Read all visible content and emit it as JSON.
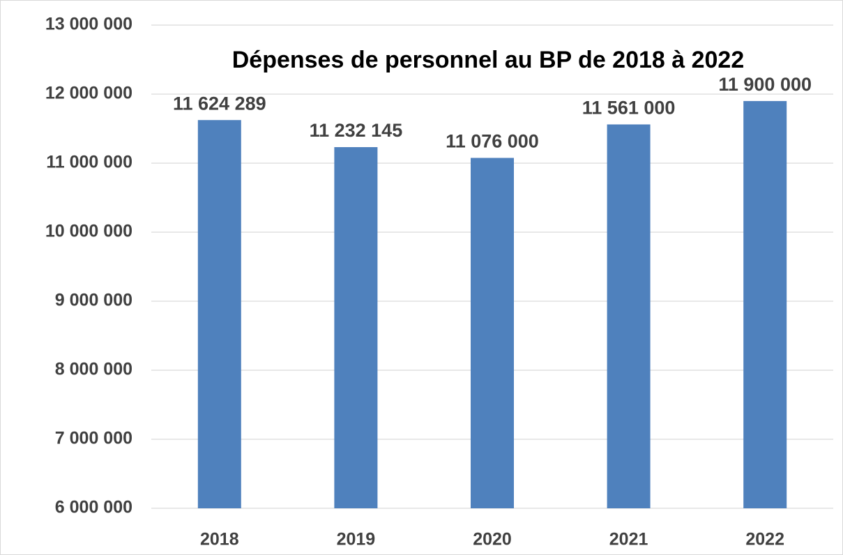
{
  "chart_data": {
    "type": "bar",
    "title": "Dépenses de personnel au BP de 2018 à 2022",
    "categories": [
      "2018",
      "2019",
      "2020",
      "2021",
      "2022"
    ],
    "values": [
      11624289,
      11232145,
      11076000,
      11561000,
      11900000
    ],
    "value_labels": [
      "11 624 289",
      "11 232 145",
      "11 076 000",
      "11 561 000",
      "11 900 000"
    ],
    "color": "#4f81bd",
    "ylim": [
      6000000,
      13000000
    ],
    "yticks": [
      {
        "value": 6000000,
        "label": "6 000 000"
      },
      {
        "value": 7000000,
        "label": "7 000 000"
      },
      {
        "value": 8000000,
        "label": "8 000 000"
      },
      {
        "value": 9000000,
        "label": "9 000 000"
      },
      {
        "value": 10000000,
        "label": "10 000 000"
      },
      {
        "value": 11000000,
        "label": "11 000 000"
      },
      {
        "value": 12000000,
        "label": "12 000 000"
      },
      {
        "value": 13000000,
        "label": "13 000 000"
      }
    ],
    "grid": true
  }
}
